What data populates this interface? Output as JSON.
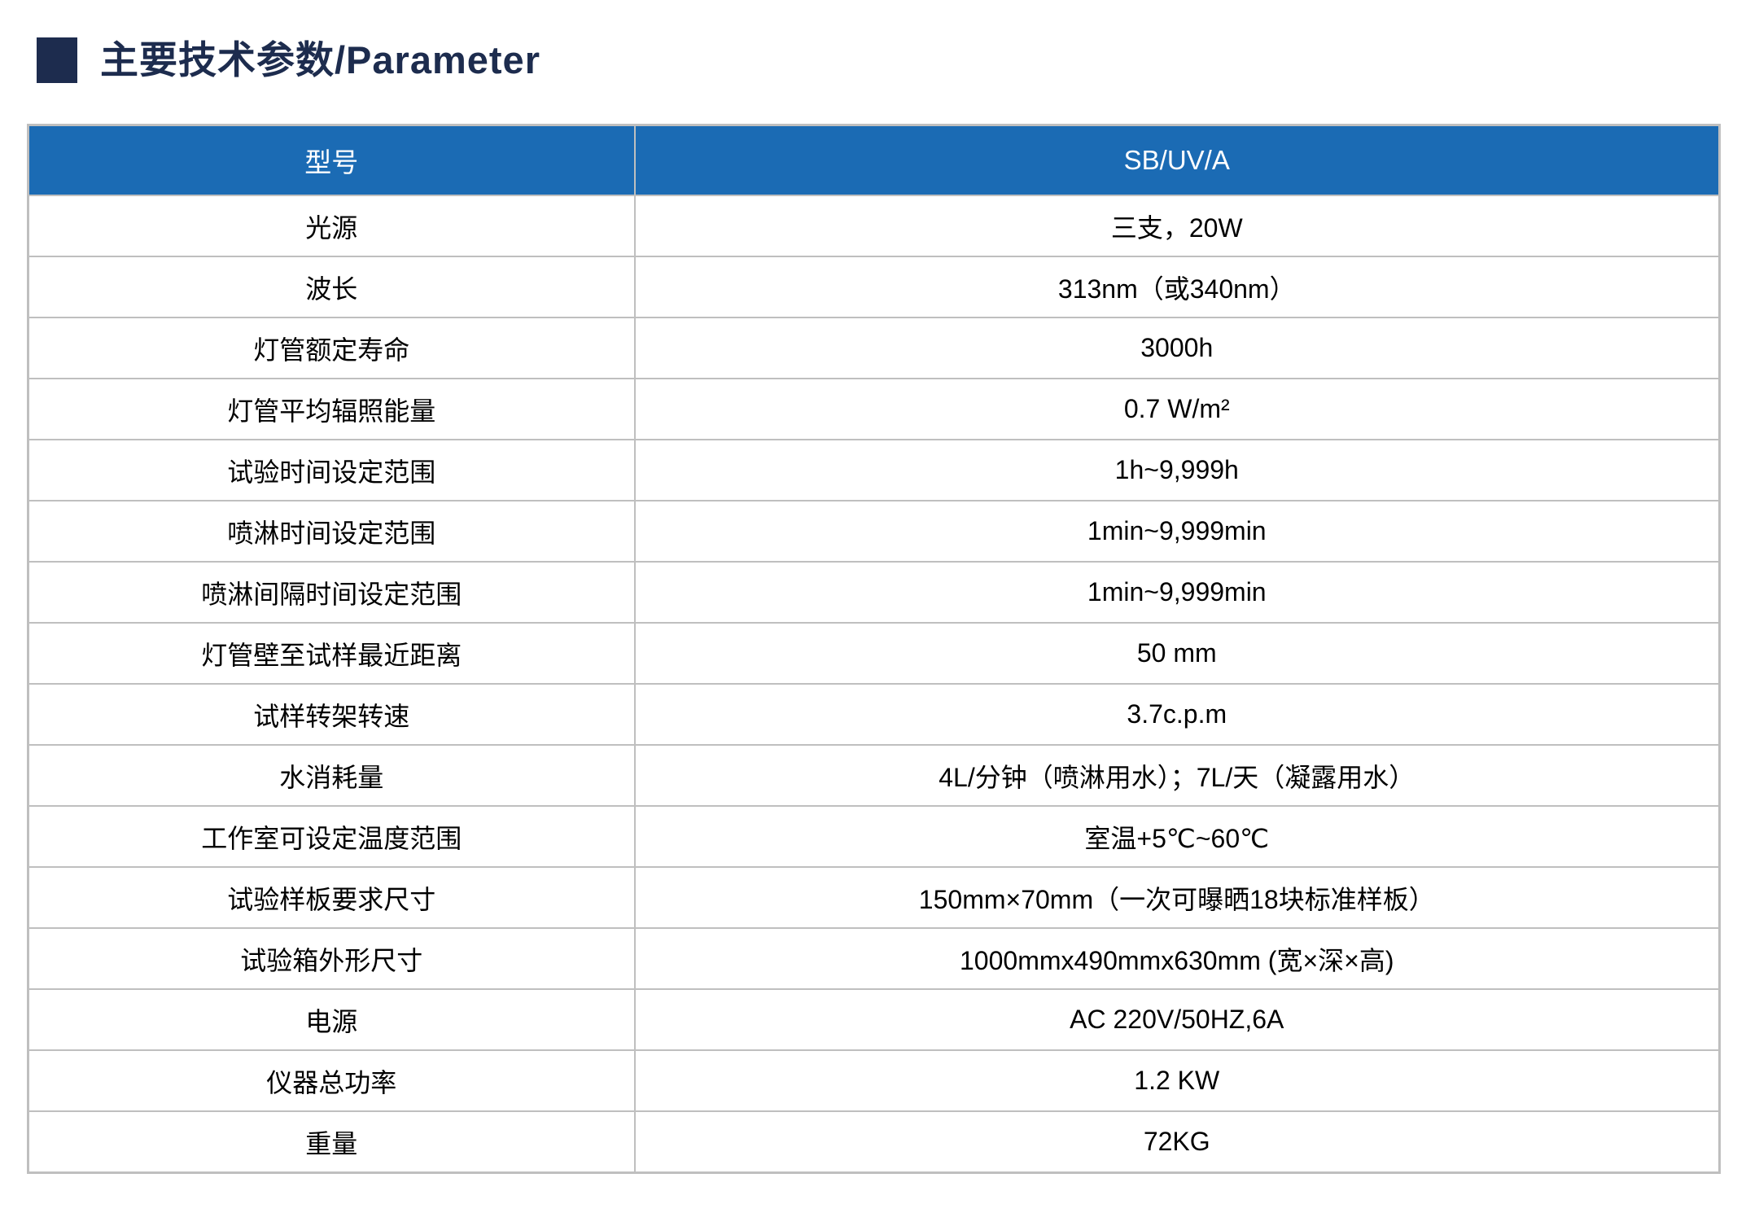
{
  "page": {
    "title": "主要技术参数/Parameter"
  },
  "colors": {
    "header_bg": "#1b6bb4",
    "title_navy": "#1d2c4e",
    "table_border": "#bfbfbf",
    "cell_text": "#000000",
    "header_text": "#ffffff"
  },
  "table": {
    "header": {
      "param_label": "型号",
      "value_label": "SB/UV/A"
    },
    "rows": [
      {
        "param": "光源",
        "value": "三支，20W"
      },
      {
        "param": "波长",
        "value": "313nm（或340nm）"
      },
      {
        "param": "灯管额定寿命",
        "value": "3000h"
      },
      {
        "param": "灯管平均辐照能量",
        "value": "0.7 W/m²"
      },
      {
        "param": "试验时间设定范围",
        "value": "1h~9,999h"
      },
      {
        "param": "喷淋时间设定范围",
        "value": "1min~9,999min"
      },
      {
        "param": "喷淋间隔时间设定范围",
        "value": "1min~9,999min"
      },
      {
        "param": "灯管壁至试样最近距离",
        "value": "50 mm"
      },
      {
        "param": "试样转架转速",
        "value": "3.7c.p.m"
      },
      {
        "param": "水消耗量",
        "value": "4L/分钟（喷淋用水）；7L/天（凝露用水）"
      },
      {
        "param": "工作室可设定温度范围",
        "value": "室温+5℃~60℃"
      },
      {
        "param": "试验样板要求尺寸",
        "value": "150mm×70mm（一次可曝晒18块标准样板）"
      },
      {
        "param": "试验箱外形尺寸",
        "value": "1000mmx490mmx630mm (宽×深×高)"
      },
      {
        "param": "电源",
        "value": "AC 220V/50HZ,6A"
      },
      {
        "param": "仪器总功率",
        "value": "1.2 KW"
      },
      {
        "param": "重量",
        "value": "72KG"
      }
    ]
  }
}
